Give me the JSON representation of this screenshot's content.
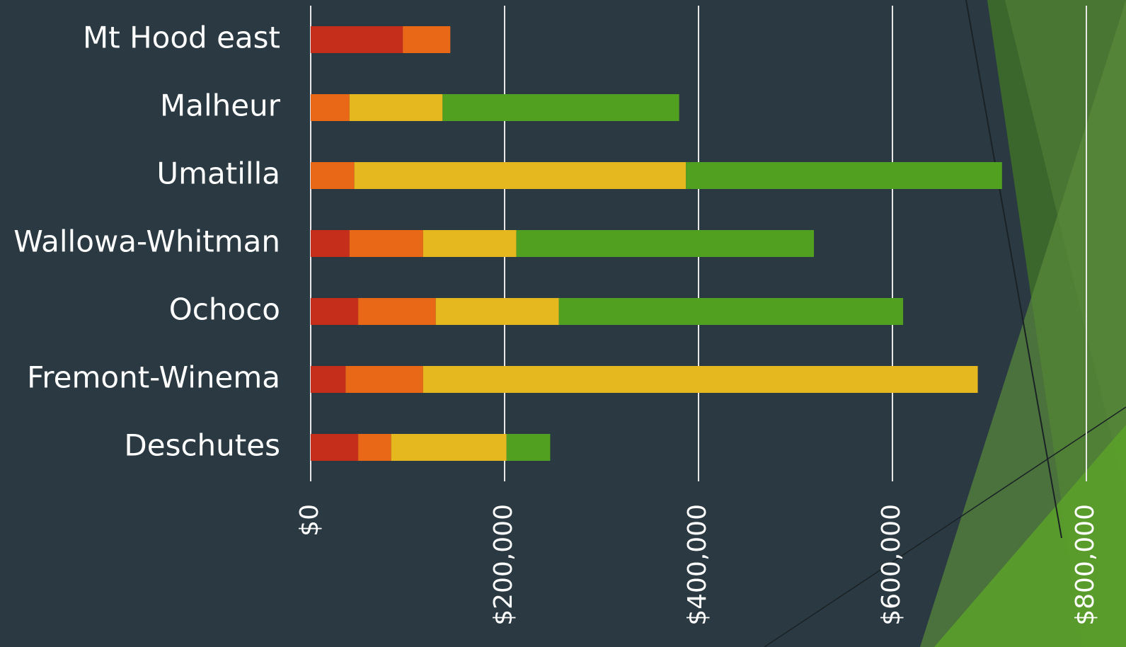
{
  "chart_data": {
    "type": "stacked-bar-horizontal",
    "categories": [
      "Mt Hood east",
      "Malheur",
      "Umatilla",
      "Wallowa-Whitman",
      "Ochoco",
      "Fremont-Winema",
      "Deschutes"
    ],
    "series": [
      {
        "color": "#c42e1a",
        "values": [
          95000,
          0,
          0,
          40000,
          49000,
          36000,
          49000
        ]
      },
      {
        "color": "#e86818",
        "values": [
          49000,
          40000,
          45000,
          76000,
          80000,
          80000,
          34000
        ]
      },
      {
        "color": "#e6b820",
        "values": [
          0,
          96000,
          342000,
          96000,
          127000,
          572000,
          119000
        ]
      },
      {
        "color": "#52a020",
        "values": [
          0,
          244000,
          326000,
          307000,
          355000,
          0,
          45000
        ]
      }
    ],
    "xlim": [
      0,
      800000
    ],
    "xticks": [
      {
        "value": 0,
        "label": "$0"
      },
      {
        "value": 200000,
        "label": "$200,000"
      },
      {
        "value": 400000,
        "label": "$400,000"
      },
      {
        "value": 600000,
        "label": "$600,000"
      },
      {
        "value": 800000,
        "label": "$800,000"
      }
    ],
    "grid": true
  }
}
